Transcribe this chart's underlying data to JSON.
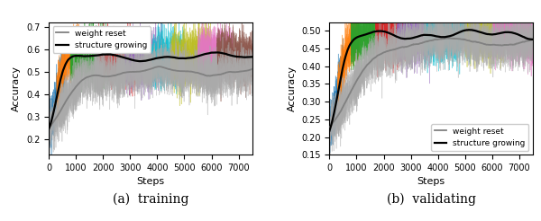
{
  "fig_width": 6.0,
  "fig_height": 2.46,
  "dpi": 100,
  "subplot_a": {
    "title": "(a)  training",
    "xlabel": "Steps",
    "ylabel": "Accuracy",
    "ylim": [
      0.13,
      0.72
    ],
    "yticks": [
      0.2,
      0.3,
      0.4,
      0.5,
      0.6,
      0.7
    ],
    "xlim": [
      0,
      7500
    ],
    "xticks": [
      0,
      1000,
      2000,
      3000,
      4000,
      5000,
      6000,
      7000
    ],
    "legend_loc": "upper left"
  },
  "subplot_b": {
    "title": "(b)  validating",
    "xlabel": "Steps",
    "ylabel": "Accuracy",
    "ylim": [
      0.15,
      0.525
    ],
    "yticks": [
      0.15,
      0.2,
      0.25,
      0.3,
      0.35,
      0.4,
      0.45,
      0.5
    ],
    "xlim": [
      0,
      7500
    ],
    "xticks": [
      0,
      1000,
      2000,
      3000,
      4000,
      5000,
      6000,
      7000
    ],
    "legend_loc": "lower right"
  },
  "train_sg_colors": [
    "#1f77b4",
    "#ff7f0e",
    "#2ca02c",
    "#d62728",
    "#9467bd",
    "#17becf",
    "#bcbd22",
    "#e377c2",
    "#8c564b",
    "#aec7e8"
  ],
  "train_wr_colors": [
    "#aaaaaa",
    "#bbbbbb",
    "#999999",
    "#cccccc",
    "#888888",
    "#aaaaaa",
    "#bbbbbb",
    "#999999",
    "#cccccc",
    "#888888"
  ],
  "val_sg_colors": [
    "#1f77b4",
    "#ff7f0e",
    "#2ca02c",
    "#d62728",
    "#9467bd",
    "#17becf",
    "#bcbd22",
    "#e377c2"
  ],
  "val_wr_colors": [
    "#aaaaaa",
    "#bbbbbb",
    "#999999",
    "#cccccc",
    "#888888",
    "#aaaaaa",
    "#bbbbbb",
    "#999999"
  ],
  "seed": 42
}
